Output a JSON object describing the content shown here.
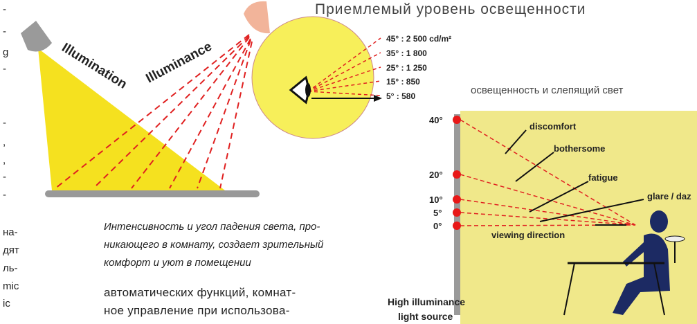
{
  "left_margin_fragments": [
    "-",
    "-",
    "g",
    "-",
    "-",
    ",",
    ",",
    "-",
    "-",
    "на-",
    "дят",
    "ль-",
    "mic",
    "ic"
  ],
  "diagram_left": {
    "label_1": "Illumination",
    "label_2": "Illuminance"
  },
  "caption": [
    "Интенсивность и  угол падения света, про-",
    "никающего в комнату, создает зрительный",
    "комфорт и уют в помещении"
  ],
  "body": [
    "автоматических функций, комнат-",
    "ное управление при использова-"
  ],
  "diagram_right": {
    "title": "Приемлемый уровень освещенности",
    "luminance_levels": [
      "45° : 2 500 cd/m²",
      "35° : 1 800",
      "25° : 1 250",
      "15° : 850",
      "5° : 580"
    ],
    "subtitle": "освещенность и слепящий свет",
    "angles": [
      "40°",
      "20°",
      "10°",
      "5°",
      "0°"
    ],
    "zones": [
      "discomfort",
      "bothersome",
      "fatigue",
      "glare / daz",
      "viewing direction"
    ],
    "source_label": [
      "High illuminance",
      "light source"
    ]
  }
}
